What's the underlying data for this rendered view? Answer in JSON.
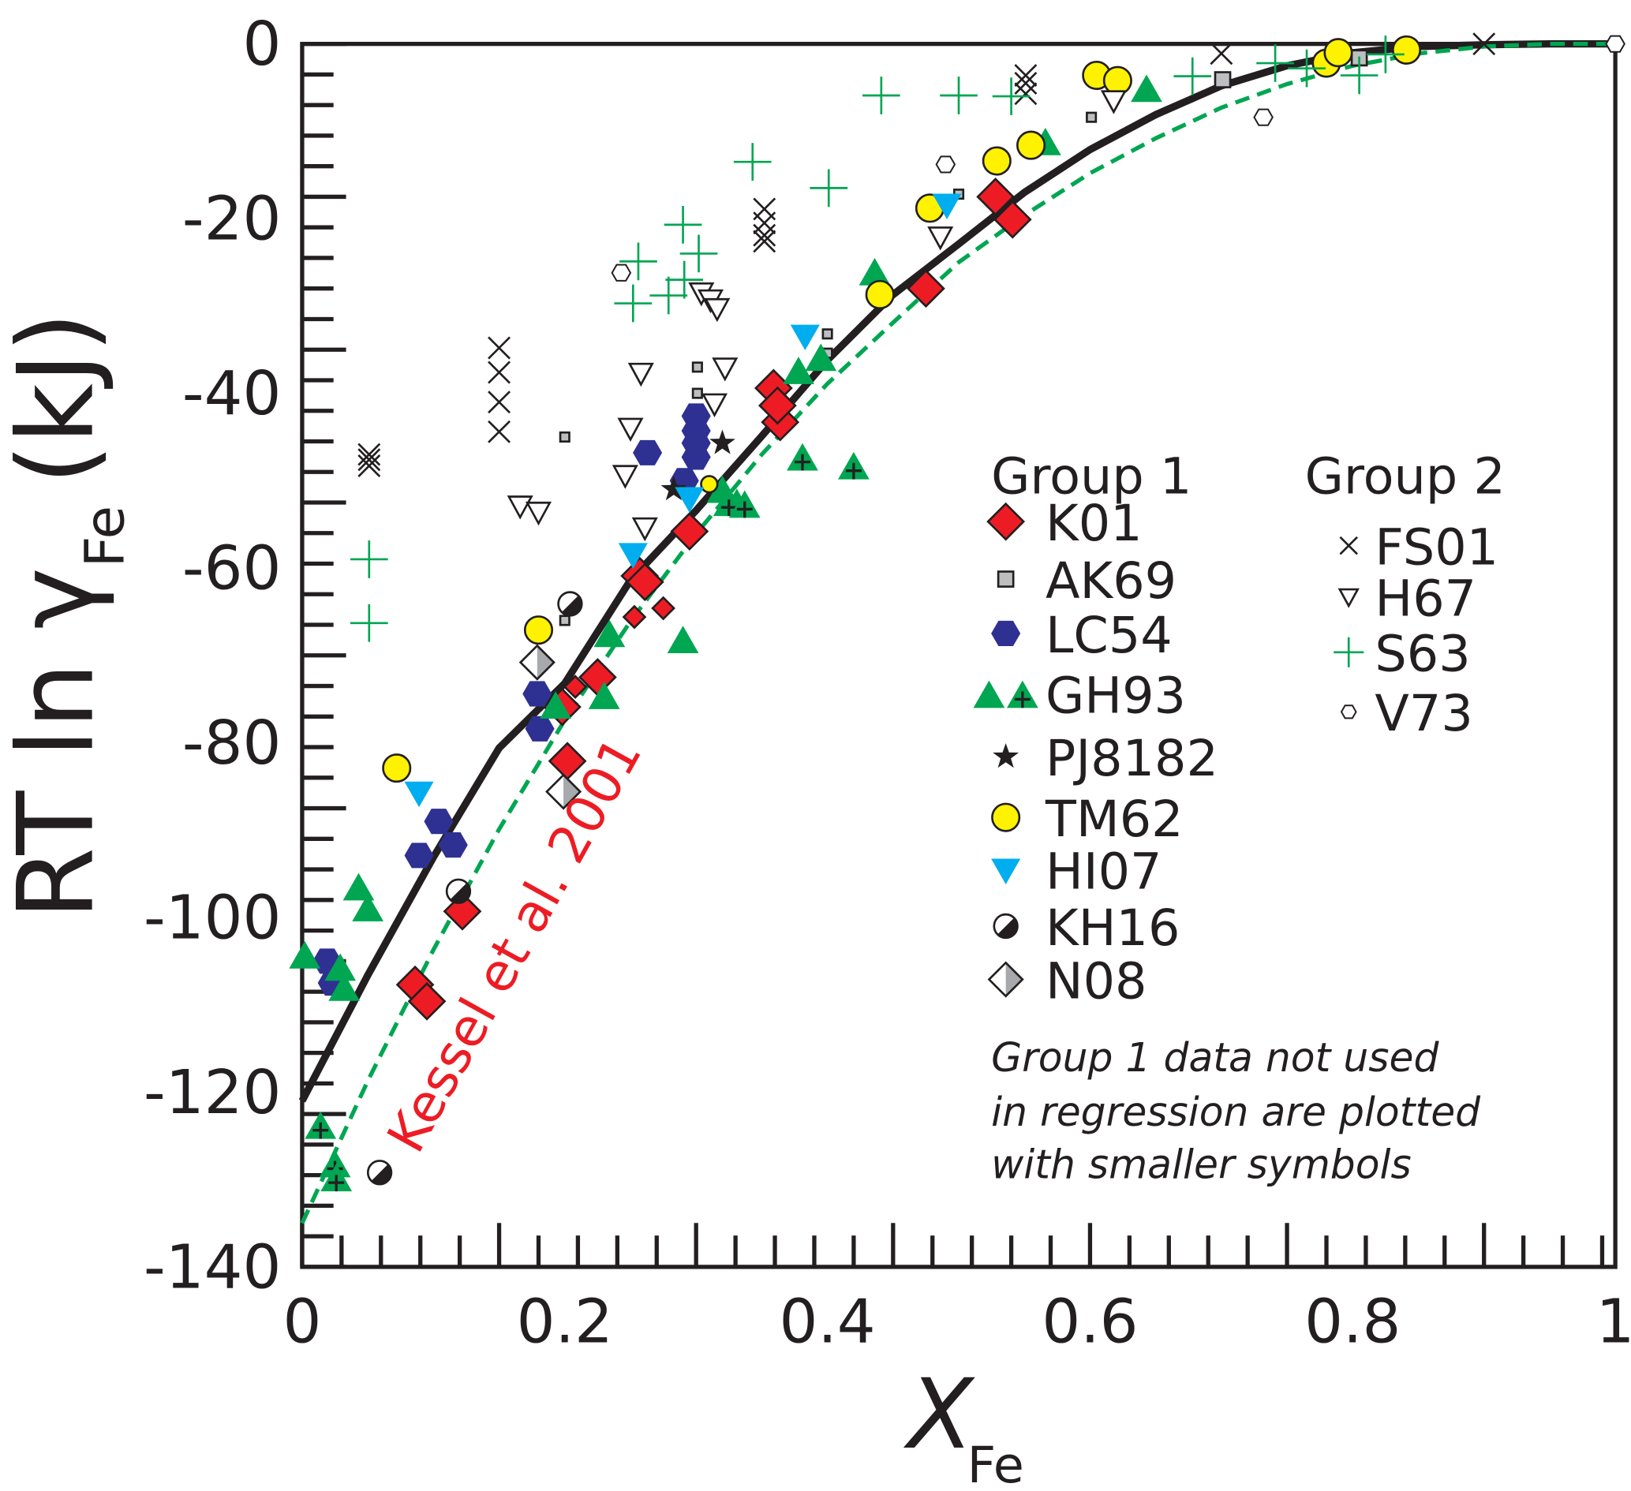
{
  "chart_data": {
    "type": "scatter",
    "xlabel": "X",
    "xlabel_sub": "Fe",
    "ylabel_prefix": "RT ln γ",
    "ylabel_sub": "Fe",
    "ylabel_suffix": "(kJ)",
    "xlim": [
      0,
      1
    ],
    "ylim": [
      -140,
      0
    ],
    "x_ticks": [
      "0",
      "0.2",
      "0.4",
      "0.6",
      "0.8",
      "1"
    ],
    "y_ticks": [
      "0",
      "-20",
      "-40",
      "-60",
      "-80",
      "-100",
      "-120",
      "-140"
    ],
    "grid": false,
    "legend_position": "right",
    "legend_groups": [
      "Group 1",
      "Group 2"
    ],
    "colors": {
      "red": "#ed1c24",
      "gray": "#bcbec0",
      "navy": "#2e3192",
      "green": "#00a651",
      "yellow": "#fff200",
      "cyan": "#00aeef",
      "black": "#231f20"
    },
    "series": [
      {
        "name": "K01",
        "group": 1,
        "marker": "diamond",
        "color": "#ed1c24",
        "points": [
          [
            0.086,
            -107.7
          ],
          [
            0.095,
            -109.6
          ],
          [
            0.122,
            -99.3
          ],
          [
            0.202,
            -82.1
          ],
          [
            0.198,
            -75.9
          ],
          [
            0.225,
            -72.5
          ],
          [
            0.257,
            -60.9
          ],
          [
            0.261,
            -61.6
          ],
          [
            0.295,
            -55.8
          ],
          [
            0.359,
            -39.4
          ],
          [
            0.364,
            -43.3
          ],
          [
            0.362,
            -41.4
          ],
          [
            0.475,
            -28.0
          ],
          [
            0.528,
            -17.5
          ],
          [
            0.541,
            -20.1
          ]
        ],
        "small_points": [
          [
            0.253,
            -65.6
          ],
          [
            0.275,
            -64.6
          ],
          [
            0.208,
            -73.6
          ]
        ]
      },
      {
        "name": "AK69",
        "group": 1,
        "marker": "square",
        "color": "#bcbec0",
        "points": [
          [
            0.701,
            -4.1
          ],
          [
            0.805,
            -1.6
          ]
        ],
        "small_points": [
          [
            0.2,
            -45.0
          ],
          [
            0.301,
            -37.0
          ],
          [
            0.301,
            -40.0
          ],
          [
            0.2,
            -66.0
          ],
          [
            0.4,
            -33.2
          ],
          [
            0.4,
            -35.4
          ],
          [
            0.5,
            -17.2
          ],
          [
            0.601,
            -8.4
          ]
        ]
      },
      {
        "name": "LC54",
        "group": 1,
        "marker": "hexagon",
        "color": "#2e3192",
        "points": [
          [
            0.019,
            -105.0
          ],
          [
            0.023,
            -107.5
          ],
          [
            0.089,
            -92.9
          ],
          [
            0.104,
            -89.0
          ],
          [
            0.115,
            -91.7
          ],
          [
            0.179,
            -74.4
          ],
          [
            0.181,
            -78.4
          ],
          [
            0.263,
            -46.8
          ],
          [
            0.3,
            -42.6
          ],
          [
            0.3,
            -44.3
          ],
          [
            0.3,
            -45.7
          ],
          [
            0.3,
            -47.3
          ],
          [
            0.291,
            -50.0
          ]
        ]
      },
      {
        "name": "GH93",
        "group": 1,
        "marker": "triangle",
        "color": "#00a651",
        "points": [
          [
            0.002,
            -104.5
          ],
          [
            0.043,
            -96.7
          ],
          [
            0.05,
            -99.1
          ],
          [
            0.029,
            -105.9
          ],
          [
            0.032,
            -108.2
          ],
          [
            0.234,
            -67.7
          ],
          [
            0.23,
            -74.8
          ],
          [
            0.193,
            -75.9
          ],
          [
            0.29,
            -68.4
          ],
          [
            0.32,
            -51.2
          ],
          [
            0.331,
            -52.7
          ],
          [
            0.378,
            -37.6
          ],
          [
            0.395,
            -36.1
          ],
          [
            0.436,
            -26.3
          ],
          [
            0.566,
            -11.4
          ],
          [
            0.643,
            -5.3
          ]
        ],
        "crossed_points": [
          [
            0.014,
            -124.0
          ],
          [
            0.025,
            -128.4
          ],
          [
            0.026,
            -130.0
          ],
          [
            0.381,
            -47.5
          ],
          [
            0.42,
            -48.5
          ],
          [
            0.325,
            -52.7
          ],
          [
            0.337,
            -52.9
          ]
        ]
      },
      {
        "name": "PJ8182",
        "group": 1,
        "marker": "star",
        "color": "#231f20",
        "points": [
          [
            0.32,
            -45.7
          ],
          [
            0.283,
            -51.0
          ]
        ]
      },
      {
        "name": "TM62",
        "group": 1,
        "marker": "circle",
        "color": "#fff200",
        "points": [
          [
            0.072,
            -82.9
          ],
          [
            0.18,
            -67.1
          ],
          [
            0.44,
            -28.7
          ],
          [
            0.478,
            -18.8
          ],
          [
            0.529,
            -13.4
          ],
          [
            0.555,
            -11.6
          ],
          [
            0.605,
            -3.6
          ],
          [
            0.621,
            -4.2
          ],
          [
            0.78,
            -2.2
          ],
          [
            0.789,
            -1.0
          ],
          [
            0.841,
            -0.7
          ]
        ],
        "small_points": [
          [
            0.31,
            -50.4
          ]
        ]
      },
      {
        "name": "HI07",
        "group": 1,
        "marker": "triangle-down",
        "color": "#00aeef",
        "points": [
          [
            0.089,
            -85.7
          ],
          [
            0.252,
            -58.4
          ],
          [
            0.383,
            -33.4
          ],
          [
            0.491,
            -18.4
          ],
          [
            0.295,
            -52.0
          ]
        ]
      },
      {
        "name": "KH16",
        "group": 1,
        "marker": "half-circle",
        "color": "#231f20",
        "points": [
          [
            0.059,
            -129.2
          ],
          [
            0.119,
            -97.0
          ],
          [
            0.204,
            -64.1
          ]
        ]
      },
      {
        "name": "N08",
        "group": 1,
        "marker": "half-diamond",
        "color": "#a7a9ac",
        "points": [
          [
            0.179,
            -70.8
          ],
          [
            0.199,
            -85.6
          ]
        ]
      },
      {
        "name": "FS01",
        "group": 2,
        "marker": "x",
        "color": "#231f20",
        "points": [
          [
            0.051,
            -47.0
          ],
          [
            0.051,
            -47.6
          ],
          [
            0.051,
            -48.3
          ],
          [
            0.15,
            -34.8
          ],
          [
            0.15,
            -37.6
          ],
          [
            0.15,
            -41.0
          ],
          [
            0.15,
            -44.4
          ],
          [
            0.352,
            -18.9
          ],
          [
            0.352,
            -20.5
          ],
          [
            0.352,
            -21.9
          ],
          [
            0.352,
            -22.6
          ],
          [
            0.551,
            -3.6
          ],
          [
            0.551,
            -4.5
          ],
          [
            0.551,
            -5.7
          ],
          [
            0.7,
            -1.1
          ],
          [
            0.9,
            0.0
          ]
        ]
      },
      {
        "name": "H67",
        "group": 2,
        "marker": "open-triangle-down",
        "color": "#231f20",
        "points": [
          [
            0.166,
            -52.9
          ],
          [
            0.18,
            -53.6
          ],
          [
            0.246,
            -49.4
          ],
          [
            0.258,
            -37.7
          ],
          [
            0.25,
            -44.0
          ],
          [
            0.261,
            -55.4
          ],
          [
            0.304,
            -28.5
          ],
          [
            0.311,
            -29.3
          ],
          [
            0.316,
            -30.3
          ],
          [
            0.322,
            -37.1
          ],
          [
            0.314,
            -41.2
          ],
          [
            0.486,
            -22.1
          ],
          [
            0.618,
            -6.5
          ]
        ]
      },
      {
        "name": "S63",
        "group": 2,
        "marker": "plus",
        "color": "#00a651",
        "points": [
          [
            0.051,
            -59.0
          ],
          [
            0.051,
            -66.3
          ],
          [
            0.252,
            -29.7
          ],
          [
            0.256,
            -24.9
          ],
          [
            0.279,
            -28.8
          ],
          [
            0.29,
            -20.7
          ],
          [
            0.291,
            -27.0
          ],
          [
            0.302,
            -24.0
          ],
          [
            0.343,
            -13.5
          ],
          [
            0.401,
            -16.5
          ],
          [
            0.441,
            -5.9
          ],
          [
            0.5,
            -5.9
          ],
          [
            0.54,
            -6.0
          ],
          [
            0.678,
            -3.7
          ],
          [
            0.741,
            -2.2
          ],
          [
            0.765,
            -2.8
          ],
          [
            0.805,
            -3.6
          ],
          [
            0.825,
            -1.2
          ]
        ]
      },
      {
        "name": "V73",
        "group": 2,
        "marker": "open-hexagon",
        "color": "#231f20",
        "points": [
          [
            0.243,
            -26.2
          ],
          [
            0.49,
            -13.8
          ],
          [
            0.732,
            -8.4
          ],
          [
            1.0,
            0.0
          ]
        ]
      }
    ],
    "curves": [
      {
        "style": "solid",
        "color": "#231f20",
        "x": [
          0,
          0.05,
          0.1,
          0.15,
          0.2,
          0.25,
          0.3,
          0.35,
          0.4,
          0.45,
          0.5,
          0.55,
          0.6,
          0.65,
          0.7,
          0.75,
          0.8,
          0.85,
          0.9,
          0.95,
          1.0
        ],
        "y": [
          -121.0,
          -106.6,
          -93.1,
          -80.6,
          -73.2,
          -61.4,
          -53.4,
          -44.9,
          -36.2,
          -28.7,
          -22.9,
          -17.0,
          -12.1,
          -8.1,
          -4.8,
          -2.5,
          -1.0,
          -0.3,
          -0.1,
          0.0,
          0.0
        ]
      },
      {
        "name": "Kessel et al. 2001",
        "style": "dashed",
        "color": "#00a651",
        "x": [
          0,
          0.05,
          0.1,
          0.15,
          0.2,
          0.25,
          0.3,
          0.35,
          0.4,
          0.45,
          0.5,
          0.55,
          0.6,
          0.65,
          0.7,
          0.75,
          0.8,
          0.85,
          0.9,
          0.95,
          1.0
        ],
        "y": [
          -135.0,
          -118.7,
          -103.7,
          -89.9,
          -77.4,
          -66.1,
          -56.1,
          -47.0,
          -38.9,
          -31.9,
          -25.0,
          -19.6,
          -14.8,
          -10.8,
          -7.3,
          -4.6,
          -2.5,
          -1.1,
          -0.3,
          0.0,
          0.0
        ]
      }
    ],
    "annotations": {
      "kessel_label": "Kessel et al. 2001",
      "note_lines": [
        "Group 1 data not used",
        "in regression are plotted",
        "with smaller symbols"
      ]
    }
  }
}
